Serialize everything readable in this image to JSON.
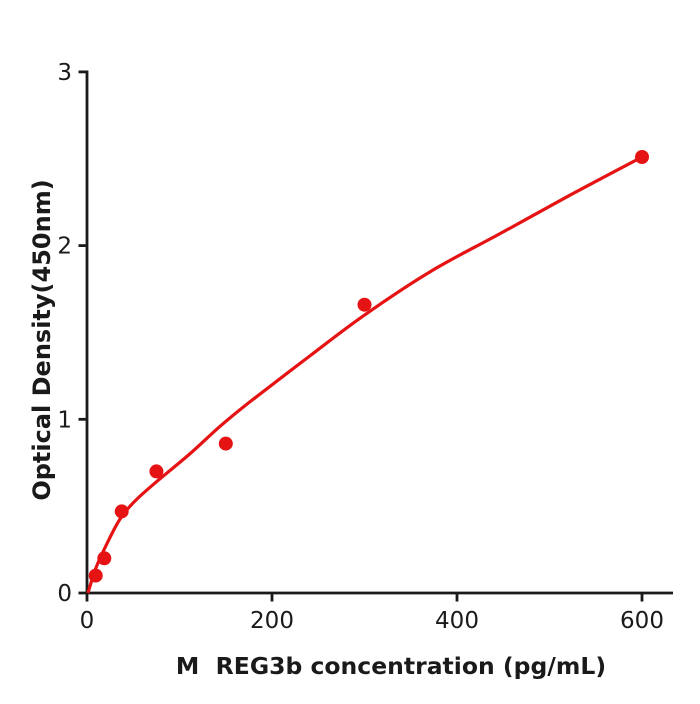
{
  "figure": {
    "background": "#ffffff",
    "axis_color": "#1a1a1a",
    "accent_color": "#e51313"
  },
  "chart_data": {
    "type": "scatter",
    "title": "",
    "xlabel": "M  REG3b concentration (pg/mL)",
    "ylabel": "Optical Density(450nm)",
    "xlim": [
      0,
      633
    ],
    "ylim": [
      0,
      3
    ],
    "xticks": [
      0,
      200,
      400,
      600
    ],
    "yticks": [
      0,
      1,
      2,
      3
    ],
    "grid": false,
    "legend": "none",
    "series": [
      {
        "name": "standard-data-points",
        "type": "scatter",
        "color": "#e51313",
        "marker": "circle",
        "points": [
          [
            9.375,
            0.1
          ],
          [
            18.75,
            0.2
          ],
          [
            37.5,
            0.47
          ],
          [
            75,
            0.7
          ],
          [
            150,
            0.86
          ],
          [
            300,
            1.66
          ],
          [
            600,
            2.51
          ]
        ]
      },
      {
        "name": "fitted-curve",
        "type": "line",
        "color": "#e51313",
        "points": [
          [
            1,
            0
          ],
          [
            9,
            0.135
          ],
          [
            18,
            0.245
          ],
          [
            35,
            0.42
          ],
          [
            52,
            0.53
          ],
          [
            75,
            0.64
          ],
          [
            111,
            0.8
          ],
          [
            144,
            0.96
          ],
          [
            176,
            1.1
          ],
          [
            241,
            1.365
          ],
          [
            300,
            1.6
          ],
          [
            371,
            1.85
          ],
          [
            447,
            2.07
          ],
          [
            522,
            2.29
          ],
          [
            600,
            2.51
          ]
        ]
      }
    ]
  }
}
